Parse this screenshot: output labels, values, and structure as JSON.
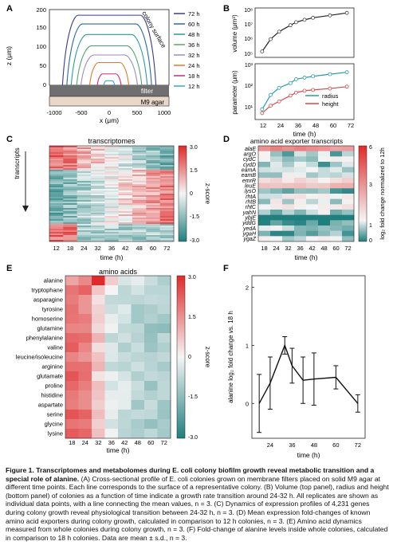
{
  "panels": {
    "A": {
      "letter": "A",
      "xlabel": "x (μm)",
      "ylabel": "z (μm)",
      "xticks": [
        "-1000",
        "-500",
        "0",
        "500",
        "1000"
      ],
      "yticks": [
        "0",
        "50",
        "100",
        "150",
        "200"
      ],
      "colony_label": "colony surface",
      "filter_label": "filter",
      "agar_label": "M9 agar",
      "legend": [
        {
          "label": "72 h",
          "color": "#3a3a8c"
        },
        {
          "label": "60 h",
          "color": "#2a6a9c"
        },
        {
          "label": "48 h",
          "color": "#2a9aa0"
        },
        {
          "label": "36 h",
          "color": "#52a86e"
        },
        {
          "label": "32 h",
          "color": "#9a8ac2"
        },
        {
          "label": "24 h",
          "color": "#e07a2a"
        },
        {
          "label": "18 h",
          "color": "#d4287a"
        },
        {
          "label": "12 h",
          "color": "#3aa3d8"
        }
      ],
      "profiles": [
        {
          "time": "72 h",
          "half_width": 860,
          "height": 185
        },
        {
          "time": "60 h",
          "half_width": 780,
          "height": 162
        },
        {
          "time": "48 h",
          "half_width": 700,
          "height": 134
        },
        {
          "time": "36 h",
          "half_width": 600,
          "height": 104
        },
        {
          "time": "32 h",
          "half_width": 520,
          "height": 80
        },
        {
          "time": "24 h",
          "half_width": 360,
          "height": 60
        },
        {
          "time": "18 h",
          "half_width": 220,
          "height": 30
        },
        {
          "time": "12 h",
          "half_width": 100,
          "height": 12
        }
      ]
    },
    "B": {
      "letter": "B",
      "top_ylabel": "volume (μm³)",
      "top_yticks": [
        "10⁵",
        "10⁶",
        "10⁷",
        "10⁸"
      ],
      "bottom_ylabel": "parameter (μm)",
      "bottom_yticks": [
        "10¹",
        "10²",
        "10³"
      ],
      "xlabel": "time (h)",
      "xticks": [
        "12",
        "24",
        "36",
        "48",
        "60",
        "72"
      ],
      "legend": [
        {
          "label": "radius",
          "color": "#2a9aa8"
        },
        {
          "label": "height",
          "color": "#d24a4a"
        }
      ]
    },
    "C": {
      "letter": "C",
      "title": "transcriptomes",
      "ylabel": "transcripts",
      "xlabel": "time (h)",
      "xticks": [
        "12",
        "18",
        "24",
        "32",
        "36",
        "42",
        "48",
        "60",
        "72"
      ],
      "colorbar_label": "z-score",
      "colorbar_ticks": [
        "3.0",
        "1.5",
        "0",
        "-1.5",
        "-3.0"
      ]
    },
    "D": {
      "letter": "D",
      "title": "amino acid exporter transcripts",
      "genes": [
        "alaE",
        "argO",
        "cydC",
        "cydD",
        "eamA",
        "eamB",
        "emrR",
        "leuE",
        "lysO",
        "rhtA",
        "rhtB",
        "rhtC",
        "yahN",
        "ybjE",
        "yddG",
        "yedA",
        "ygaH",
        "ygaZ"
      ],
      "xlabel": "time (h)",
      "xticks": [
        "18",
        "24",
        "32",
        "36",
        "42",
        "48",
        "60",
        "72"
      ],
      "colorbar_label": "log₂ fold change normalized to 12h",
      "colorbar_ticks": [
        "6",
        "3",
        "1",
        "0"
      ]
    },
    "E": {
      "letter": "E",
      "title": "amino acids",
      "compounds": [
        "alanine",
        "tryptophane",
        "asparagine",
        "tyrosine",
        "homoserine",
        "glutamine",
        "phenylalanine",
        "valine",
        "leucine/isoleucine",
        "arginine",
        "glutamate",
        "proline",
        "histidine",
        "aspartate",
        "serine",
        "glycine",
        "lysine"
      ],
      "xlabel": "time (h)",
      "xticks": [
        "18",
        "24",
        "32",
        "36",
        "42",
        "48",
        "60",
        "72"
      ],
      "colorbar_label": "z-score",
      "colorbar_ticks": [
        "3.0",
        "1.5",
        "0",
        "-1.5",
        "-3.0"
      ]
    },
    "F": {
      "letter": "F",
      "ylabel": "alanine log₂ fold change vs. 18 h",
      "xlabel": "time (h)",
      "xticks": [
        "24",
        "36",
        "48",
        "60",
        "72"
      ],
      "yticks": [
        "0",
        "1",
        "2"
      ]
    }
  },
  "chart_data": [
    {
      "panel": "B-top",
      "type": "line",
      "x": [
        12,
        18,
        24,
        32,
        36,
        42,
        48,
        60,
        72
      ],
      "series": [
        {
          "values": [
            300000,
            3000000,
            12000000,
            40000000,
            70000000,
            110000000,
            160000000,
            250000000,
            400000000
          ]
        }
      ],
      "ylabel": "volume (μm³)",
      "xlabel": "time (h)",
      "log_y": true,
      "ylim": [
        100000,
        1000000000
      ]
    },
    {
      "panel": "B-bottom",
      "type": "line",
      "x": [
        12,
        18,
        24,
        32,
        36,
        42,
        48,
        60,
        72
      ],
      "series": [
        {
          "name": "radius",
          "values": [
            15,
            70,
            150,
            250,
            380,
            450,
            520,
            650,
            800
          ]
        },
        {
          "name": "height",
          "values": [
            10,
            22,
            35,
            65,
            90,
            110,
            120,
            140,
            170
          ]
        }
      ],
      "ylabel": "parameter (μm)",
      "xlabel": "time (h)",
      "log_y": true,
      "ylim": [
        5,
        2000
      ]
    },
    {
      "panel": "F",
      "type": "line",
      "x": [
        18,
        24,
        32,
        36,
        42,
        48,
        60,
        72
      ],
      "values": [
        0.0,
        0.35,
        1.0,
        0.65,
        0.4,
        0.42,
        0.45,
        0.0
      ],
      "errors": [
        0.5,
        0.45,
        0.15,
        0.3,
        0.4,
        0.45,
        0.2,
        0.15
      ],
      "ylabel": "alanine log₂ fold change vs. 18 h",
      "xlabel": "time (h)",
      "ylim": [
        -0.6,
        2.2
      ]
    }
  ],
  "caption": {
    "title": "Figure 1. Transcriptomes and metabolomes during E. coli colony biofilm growth reveal metabolic transition and a special role of alanine.",
    "body": "(A) Cross-sectional profile of E. coli colonies grown on membrane filters placed on solid M9 agar at different time points. Each line corresponds to the surface of a representative colony. (B) Volume (top panel), radius and height (bottom panel) of colonies as a function of time indicate a growth rate transition around 24-32 h. All replicates are shown as individual data points, with a line connecting the mean values, n = 3. (C) Dynamics of expression profiles of 4,231 genes during colony growth reveal physiological transition between 24-32 h, n = 3. (D) Mean expression fold-changes of known amino acid exporters during colony growth, calculated in comparison to 12 h colonies, n = 3. (E) Amino acid dynamics measured from whole colonies during colony growth, n = 3. (F) Fold-change of alanine levels inside whole colonies, calculated in comparison to 18 h colonies. Data are mean ± s.d., n = 3."
  },
  "colors": {
    "red": "#e23b3b",
    "white": "#f4f4f4",
    "teal": "#2a8a8a",
    "filter": "#6f6f6f",
    "agar": "#e9d8c8"
  }
}
